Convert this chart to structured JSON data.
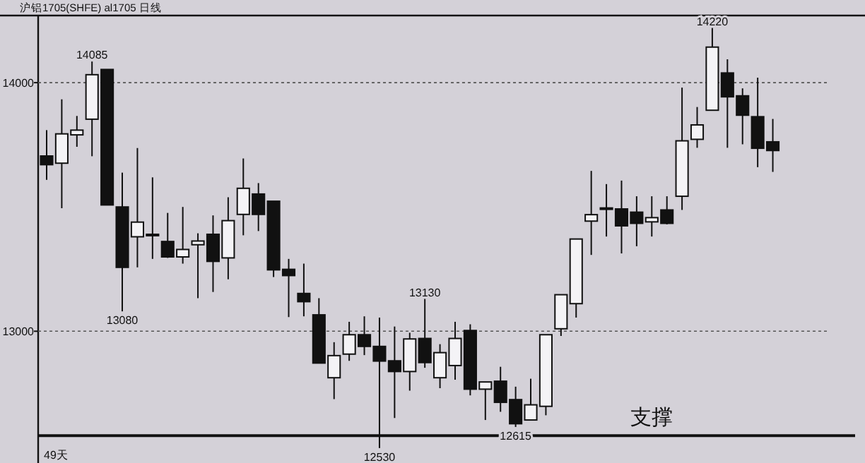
{
  "chart_data": {
    "type": "candlestick",
    "title": "沪铝1705(SHFE)  al1705 日线",
    "categories": [
      null,
      null,
      null,
      null,
      null,
      null,
      null,
      null,
      null,
      null,
      null,
      null,
      null,
      null,
      null,
      null,
      null,
      null,
      null,
      null,
      null,
      null,
      null,
      null,
      null,
      null,
      null,
      null,
      null,
      null,
      null,
      null,
      null,
      null,
      null,
      null,
      null,
      null,
      null,
      null,
      null,
      null,
      null,
      null,
      null,
      null,
      null,
      null,
      null
    ],
    "ohlc": [
      [
        13705,
        13809,
        13609,
        13670
      ],
      [
        13676,
        13933,
        13495,
        13794
      ],
      [
        13790,
        13866,
        13742,
        13809
      ],
      [
        13853,
        14085,
        13704,
        14032
      ],
      [
        14053,
        14053,
        13508,
        13508
      ],
      [
        13500,
        13638,
        13080,
        13257
      ],
      [
        13380,
        13737,
        13257,
        13439
      ],
      [
        13390,
        13619,
        13291,
        13386
      ],
      [
        13361,
        13476,
        13295,
        13299
      ],
      [
        13299,
        13500,
        13272,
        13329
      ],
      [
        13348,
        13394,
        13133,
        13363
      ],
      [
        13390,
        13466,
        13158,
        13281
      ],
      [
        13295,
        13539,
        13209,
        13445
      ],
      [
        13470,
        13695,
        13386,
        13575
      ],
      [
        13552,
        13596,
        13403,
        13470
      ],
      [
        13523,
        13523,
        13218,
        13247
      ],
      [
        13249,
        13291,
        13057,
        13224
      ],
      [
        13152,
        13272,
        13060,
        13119
      ],
      [
        13066,
        13133,
        12872,
        12872
      ],
      [
        12813,
        12956,
        12727,
        12902
      ],
      [
        12908,
        13038,
        12881,
        12986
      ],
      [
        12986,
        13060,
        12904,
        12939
      ],
      [
        12939,
        13055,
        12530,
        12880
      ],
      [
        12881,
        13019,
        12651,
        12838
      ],
      [
        12838,
        12994,
        12761,
        12969
      ],
      [
        12971,
        13130,
        12853,
        12874
      ],
      [
        12813,
        12948,
        12771,
        12914
      ],
      [
        12862,
        13038,
        12805,
        12971
      ],
      [
        13003,
        13028,
        12742,
        12767
      ],
      [
        12767,
        12796,
        12643,
        12796
      ],
      [
        12799,
        12857,
        12676,
        12714
      ],
      [
        12725,
        12777,
        12615,
        12628
      ],
      [
        12643,
        12809,
        12643,
        12704
      ],
      [
        12698,
        12986,
        12662,
        12986
      ],
      [
        13010,
        13147,
        12981,
        13147
      ],
      [
        13111,
        13371,
        13055,
        13371
      ],
      [
        13443,
        13645,
        13307,
        13469
      ],
      [
        13496,
        13592,
        13381,
        13492
      ],
      [
        13492,
        13606,
        13313,
        13424
      ],
      [
        13479,
        13543,
        13342,
        13434
      ],
      [
        13440,
        13543,
        13381,
        13457
      ],
      [
        13488,
        13543,
        13430,
        13434
      ],
      [
        13543,
        13980,
        13488,
        13766
      ],
      [
        13772,
        13902,
        13738,
        13830
      ],
      [
        13889,
        14220,
        13889,
        14143
      ],
      [
        14039,
        14094,
        13738,
        13943
      ],
      [
        13947,
        13977,
        13752,
        13869
      ],
      [
        13863,
        14020,
        13660,
        13736
      ],
      [
        13762,
        13854,
        13641,
        13727
      ]
    ],
    "ylim": [
      12470,
      14270
    ],
    "yticks": [
      13000,
      14000
    ],
    "grid": "y",
    "ref_lines": [
      {
        "axis": "y",
        "value": 12580,
        "label": "支撑",
        "color": "#111111"
      }
    ],
    "annotations": [
      "49天",
      {
        "text": "14085",
        "y": 14085
      },
      {
        "text": "13080",
        "y": 13080
      },
      {
        "text": "13130",
        "y": 13130
      },
      {
        "text": "12530",
        "y": 12530
      },
      {
        "text": "12615",
        "y": 12615
      },
      {
        "text": "14220",
        "y": 14220
      }
    ]
  }
}
